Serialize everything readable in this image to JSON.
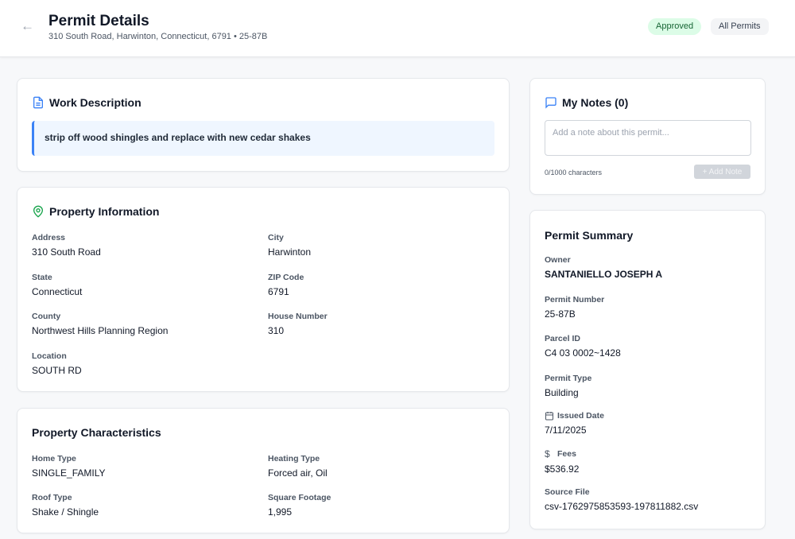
{
  "header": {
    "title": "Permit Details",
    "subtitle": "310 South Road, Harwinton, Connecticut, 6791 • 25-87B",
    "status": "Approved",
    "all_permits": "All Permits",
    "status_color": "#dcfce7"
  },
  "work": {
    "title": "Work Description",
    "text": "strip off wood shingles and replace with new cedar shakes"
  },
  "property": {
    "title": "Property Information",
    "fields": [
      {
        "label": "Address",
        "value": "310 South Road"
      },
      {
        "label": "City",
        "value": "Harwinton"
      },
      {
        "label": "State",
        "value": "Connecticut"
      },
      {
        "label": "ZIP Code",
        "value": "6791"
      },
      {
        "label": "County",
        "value": "Northwest Hills Planning Region"
      },
      {
        "label": "House Number",
        "value": "310"
      },
      {
        "label": "Location",
        "value": "SOUTH RD"
      }
    ]
  },
  "characteristics": {
    "title": "Property Characteristics",
    "fields": [
      {
        "label": "Home Type",
        "value": "SINGLE_FAMILY"
      },
      {
        "label": "Heating Type",
        "value": "Forced air, Oil"
      },
      {
        "label": "Roof Type",
        "value": "Shake / Shingle"
      },
      {
        "label": "Square Footage",
        "value": "1,995"
      }
    ]
  },
  "notes": {
    "title": "My Notes (0)",
    "placeholder": "Add a note about this permit...",
    "count": "0/1000 characters",
    "add": "+ Add Note"
  },
  "summary": {
    "title": "Permit Summary",
    "fields": [
      {
        "label": "Owner",
        "value": "SANTANIELLO JOSEPH A"
      },
      {
        "label": "Permit Number",
        "value": "25-87B"
      },
      {
        "label": "Parcel ID",
        "value": "C4 03 0002~1428"
      },
      {
        "label": "Permit Type",
        "value": "Building"
      },
      {
        "label": "Issued Date",
        "value": "7/11/2025"
      },
      {
        "label": "Fees",
        "value": "$536.92"
      },
      {
        "label": "Source File",
        "value": "csv-1762975853593-197811882.csv"
      }
    ]
  }
}
